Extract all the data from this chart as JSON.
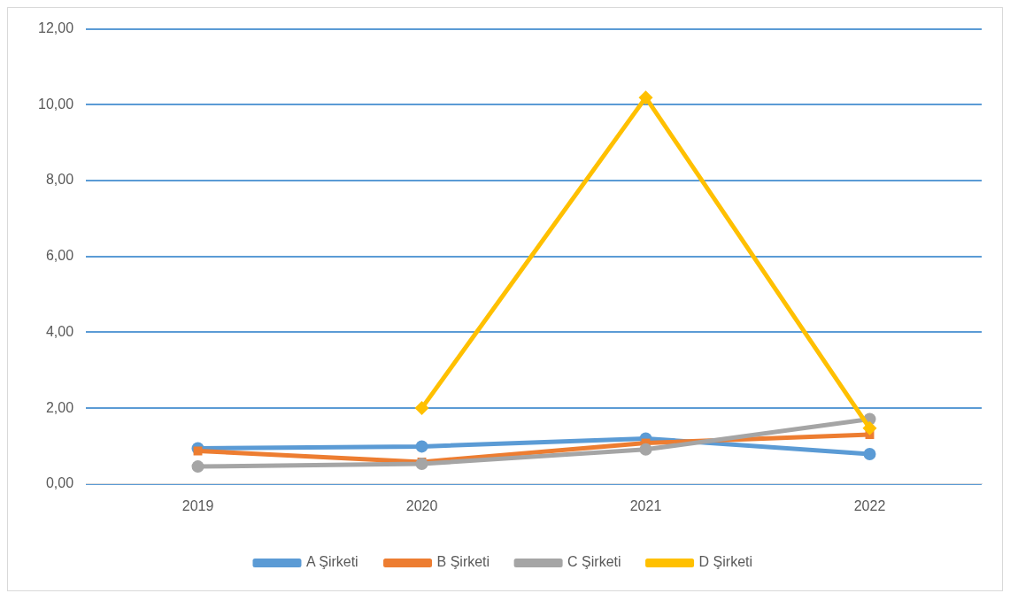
{
  "chart_data": {
    "type": "line",
    "categories": [
      "2019",
      "2020",
      "2021",
      "2022"
    ],
    "series": [
      {
        "name": "A Şirketi",
        "color": "#5b9bd5",
        "marker": "circle",
        "values": [
          0.94,
          0.99,
          1.2,
          0.79
        ]
      },
      {
        "name": "B Şirketi",
        "color": "#ed7d31",
        "marker": "square",
        "values": [
          0.87,
          0.58,
          1.08,
          1.3
        ]
      },
      {
        "name": "C Şirketi",
        "color": "#a5a5a5",
        "marker": "circle",
        "values": [
          0.46,
          0.53,
          0.91,
          1.71
        ]
      },
      {
        "name": "D Şirketi",
        "color": "#ffc000",
        "marker": "diamond",
        "values": [
          null,
          2.0,
          10.19,
          1.47
        ]
      }
    ],
    "ylim": [
      0,
      12
    ],
    "yticks": [
      {
        "value": 0,
        "label": "0,00"
      },
      {
        "value": 2,
        "label": "2,00"
      },
      {
        "value": 4,
        "label": "4,00"
      },
      {
        "value": 6,
        "label": "6,00"
      },
      {
        "value": 8,
        "label": "8,00"
      },
      {
        "value": 10,
        "label": "10,00"
      },
      {
        "value": 12,
        "label": "12,00"
      }
    ],
    "grid": "y",
    "legend": "bottom",
    "line_style": "solid"
  }
}
